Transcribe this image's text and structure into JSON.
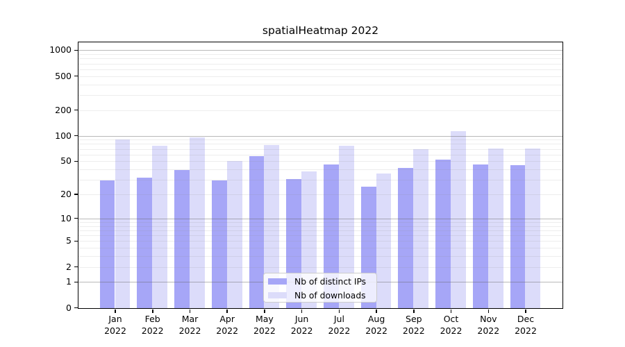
{
  "figure": {
    "title": "spatialHeatmap 2022"
  },
  "chart_data": {
    "type": "bar",
    "title": "spatialHeatmap 2022",
    "categories": [
      "Jan",
      "Feb",
      "Mar",
      "Apr",
      "May",
      "Jun",
      "Jul",
      "Aug",
      "Sep",
      "Oct",
      "Nov",
      "Dec"
    ],
    "category_year": "2022",
    "series": [
      {
        "name": "Nb of distinct IPs",
        "color": "#a6a6f7",
        "values": [
          30,
          32,
          40,
          30,
          58,
          31,
          46,
          25,
          42,
          53,
          46,
          45
        ]
      },
      {
        "name": "Nb of downloads",
        "color": "#dcdcfa",
        "values": [
          92,
          77,
          97,
          51,
          79,
          38,
          77,
          36,
          70,
          115,
          71,
          71
        ]
      }
    ],
    "xlabel": "",
    "ylabel": "",
    "y_axis": {
      "scale": "log10(value+1)",
      "tick_labels": [
        "0",
        "1",
        "2",
        "5",
        "10",
        "20",
        "50",
        "100",
        "200",
        "500",
        "1000"
      ],
      "tick_values": [
        0,
        1,
        2,
        5,
        10,
        20,
        50,
        100,
        200,
        500,
        1000
      ],
      "major_gridlines": [
        1,
        10,
        100,
        1000
      ],
      "range": [
        0,
        1280
      ]
    },
    "grid": true,
    "legend": {
      "position": "inside-bottom-center"
    }
  },
  "colors": {
    "grid_major": "rgba(100,100,100,0.45)",
    "grid_minor": "rgba(140,140,140,0.16)",
    "axis": "#000000",
    "legend_border": "#cccccc"
  }
}
